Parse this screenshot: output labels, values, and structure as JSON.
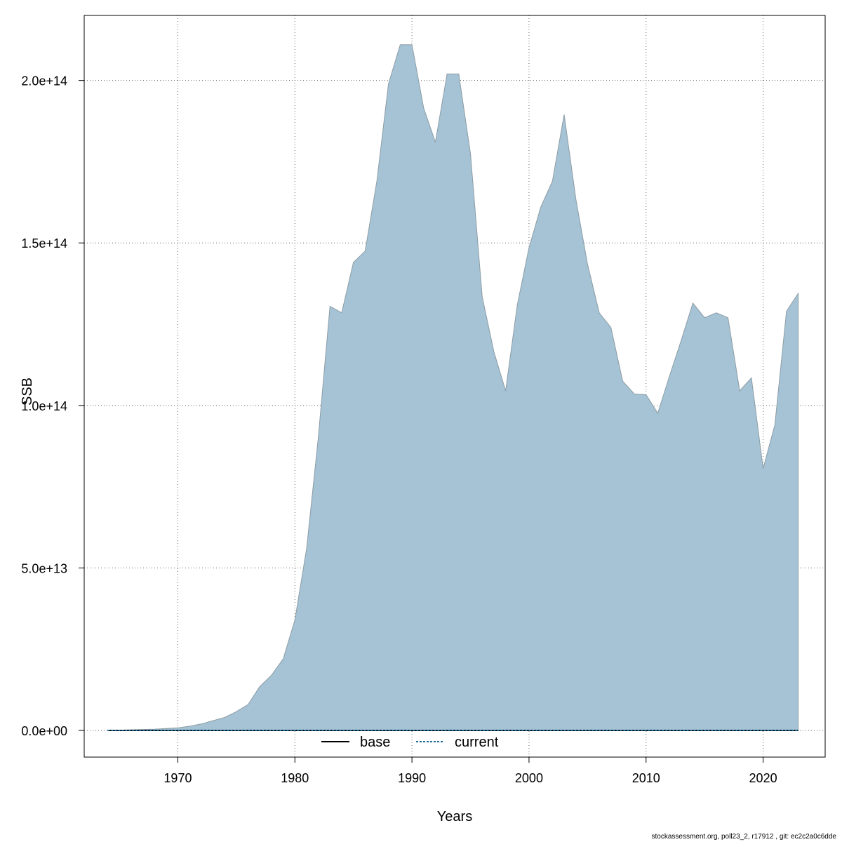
{
  "chart_data": {
    "type": "area",
    "xlabel": "Years",
    "ylabel": "SSB",
    "xlim": [
      1962,
      2025.3
    ],
    "ylim": [
      -8200000000000.0,
      220000000000000.0
    ],
    "x_ticks": [
      1970,
      1980,
      1990,
      2000,
      2010,
      2020
    ],
    "y_ticks": [
      0,
      50000000000000.0,
      100000000000000.0,
      150000000000000.0,
      200000000000000.0
    ],
    "y_tick_labels": [
      "0.0e+00",
      "5.0e+13",
      "1.0e+14",
      "1.5e+14",
      "2.0e+14"
    ],
    "grid": true,
    "legend_position": "bottom-center",
    "colors": {
      "fill": "#a5c3d4",
      "fill_edge": "#8c9ca6",
      "base": "#000000",
      "current": "#1a6e99"
    },
    "x": [
      1964,
      1965,
      1966,
      1967,
      1968,
      1969,
      1970,
      1971,
      1972,
      1973,
      1974,
      1975,
      1976,
      1977,
      1978,
      1979,
      1980,
      1981,
      1982,
      1983,
      1984,
      1985,
      1986,
      1987,
      1988,
      1989,
      1990,
      1991,
      1992,
      1993,
      1994,
      1995,
      1996,
      1997,
      1998,
      1999,
      2000,
      2001,
      2002,
      2003,
      2004,
      2005,
      2006,
      2007,
      2008,
      2009,
      2010,
      2011,
      2012,
      2013,
      2014,
      2015,
      2016,
      2017,
      2018,
      2019,
      2020,
      2021,
      2022,
      2023
    ],
    "series": [
      {
        "role": "band",
        "values": [
          100000000000.0,
          100000000000.0,
          200000000000.0,
          300000000000.0,
          400000000000.0,
          600000000000.0,
          800000000000.0,
          1300000000000.0,
          2000000000000.0,
          3000000000000.0,
          4000000000000.0,
          5800000000000.0,
          8000000000000.0,
          13500000000000.0,
          17000000000000.0,
          22000000000000.0,
          34000000000000.0,
          56000000000000.0,
          90000000000000.0,
          130500000000000.0,
          128500000000000.0,
          144000000000000.0,
          147500000000000.0,
          169000000000000.0,
          199000000000000.0,
          211000000000000.0,
          211000000000000.0,
          191500000000000.0,
          181000000000000.0,
          202000000000000.0,
          202000000000000.0,
          177500000000000.0,
          133500000000000.0,
          116500000000000.0,
          104500000000000.0,
          131000000000000.0,
          148500000000000.0,
          161000000000000.0,
          169000000000000.0,
          189500000000000.0,
          163500000000000.0,
          143500000000000.0,
          128500000000000.0,
          124000000000000.0,
          107500000000000.0,
          103500000000000.0,
          103300000000000.0,
          97600000000000.0,
          109000000000000.0,
          120000000000000.0,
          131500000000000.0,
          127000000000000.0,
          128500000000000.0,
          127000000000000.0,
          104500000000000.0,
          108500000000000.0,
          80600000000000.0,
          94000000000000.0,
          129000000000000.0,
          134500000000000.0
        ]
      },
      {
        "name": "base",
        "values": [
          0,
          0,
          0,
          0,
          0,
          0,
          0,
          0,
          0,
          0,
          0,
          0,
          0,
          0,
          0,
          0,
          0,
          0,
          0,
          0,
          0,
          0,
          0,
          0,
          0,
          0,
          0,
          0,
          0,
          0,
          0,
          0,
          0,
          0,
          0,
          0,
          0,
          0,
          0,
          0,
          0,
          0,
          0,
          0,
          0,
          0,
          0,
          0,
          0,
          0,
          0,
          0,
          0,
          0,
          0,
          0,
          0,
          0,
          0,
          0
        ]
      },
      {
        "name": "current",
        "values": [
          0,
          0,
          0,
          0,
          0,
          0,
          0,
          0,
          0,
          0,
          0,
          0,
          0,
          0,
          0,
          0,
          0,
          0,
          0,
          0,
          0,
          0,
          0,
          0,
          0,
          0,
          0,
          0,
          0,
          0,
          0,
          0,
          0,
          0,
          0,
          0,
          0,
          0,
          0,
          0,
          0,
          0,
          0,
          0,
          0,
          0,
          0,
          0,
          0,
          0,
          0,
          0,
          0,
          0,
          0,
          0,
          0,
          0,
          0,
          0
        ]
      }
    ]
  },
  "legend": {
    "base": "base",
    "current": "current"
  },
  "footer": "stockassessment.org, poll23_2, r17912 , git: ec2c2a0c6dde"
}
